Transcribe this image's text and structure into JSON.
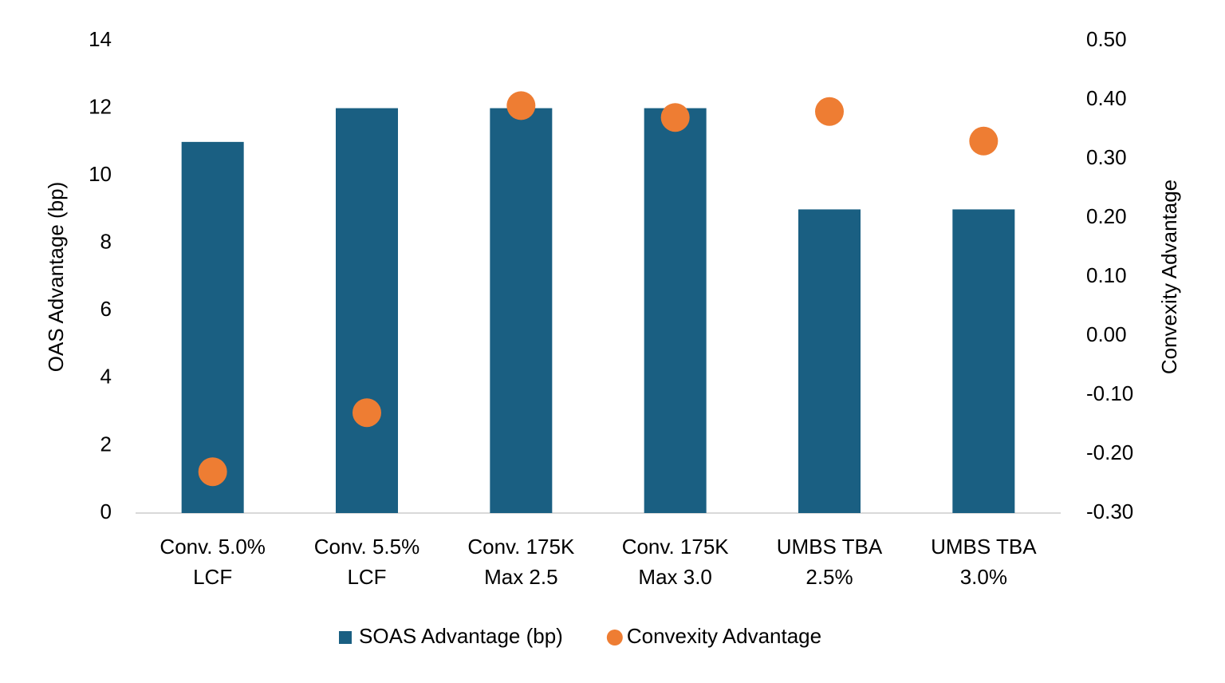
{
  "chart_data": {
    "type": "bar",
    "categories": [
      [
        "Conv. 5.0%",
        "LCF"
      ],
      [
        "Conv. 5.5%",
        "LCF"
      ],
      [
        "Conv. 175K",
        "Max 2.5"
      ],
      [
        "Conv. 175K",
        "Max 3.0"
      ],
      [
        "UMBS TBA",
        "2.5%"
      ],
      [
        "UMBS TBA",
        "3.0%"
      ]
    ],
    "series": [
      {
        "name": "SOAS Advantage (bp)",
        "type": "bar",
        "color": "#1a5f82",
        "values": [
          11,
          12,
          12,
          12,
          9,
          9
        ]
      },
      {
        "name": "Convexity Advantage",
        "type": "scatter",
        "color": "#ee7d33",
        "axis": "y2",
        "values": [
          -0.23,
          -0.13,
          0.39,
          0.37,
          0.38,
          0.33
        ]
      }
    ],
    "ylabel": "OAS Advantage (bp)",
    "y2label": "Convexity Advantage",
    "ylim": [
      0,
      14
    ],
    "yticks": [
      0,
      2,
      4,
      6,
      8,
      10,
      12,
      14
    ],
    "y2lim": [
      -0.3,
      0.5
    ],
    "y2ticks": [
      {
        "value": -0.3,
        "label": "-0.30"
      },
      {
        "value": -0.2,
        "label": "-0.20"
      },
      {
        "value": -0.1,
        "label": "-0.10"
      },
      {
        "value": 0,
        "label": "0.00"
      },
      {
        "value": 0.1,
        "label": "0.10"
      },
      {
        "value": 0.2,
        "label": "0.20"
      },
      {
        "value": 0.3,
        "label": "0.30"
      },
      {
        "value": 0.4,
        "label": "0.40"
      },
      {
        "value": 0.5,
        "label": "0.50"
      }
    ],
    "grid": false,
    "legend": "bottom"
  }
}
